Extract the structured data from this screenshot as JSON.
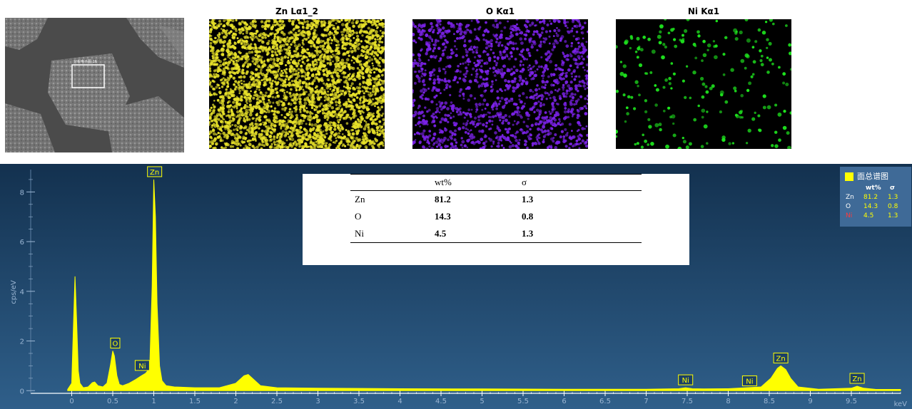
{
  "maps": [
    {
      "title": "Zn Lα1_2",
      "color": "#e8e22a"
    },
    {
      "title": "O Kα1",
      "color": "#7b22e8"
    },
    {
      "title": "Ni Kα1",
      "color": "#1ee51e"
    }
  ],
  "sem": {
    "roi_label": "分析电子图 16"
  },
  "table": {
    "headers": [
      "",
      "wt%",
      "σ"
    ],
    "rows": [
      [
        "Zn",
        "81.2",
        "1.3"
      ],
      [
        "O",
        "14.3",
        "0.8"
      ],
      [
        "Ni",
        "4.5",
        "1.3"
      ]
    ]
  },
  "legend": {
    "title": "面总谱图",
    "col1": "wt%",
    "col2": "σ",
    "rows": [
      {
        "el": "Zn",
        "wt": "81.2",
        "sigma": "1.3",
        "el_color": "#ffffff"
      },
      {
        "el": "O",
        "wt": "14.3",
        "sigma": "0.8",
        "el_color": "#ffffff"
      },
      {
        "el": "Ni",
        "wt": "4.5",
        "sigma": "1.3",
        "el_color": "#ff3b3b"
      }
    ],
    "value_color": "#ffff00"
  },
  "chart_data": {
    "type": "area",
    "xlabel": "keV",
    "ylabel": "cps/eV",
    "xlim": [
      -0.5,
      10.1
    ],
    "ylim": [
      -0.05,
      8.9
    ],
    "xticks": [
      "0",
      "0.5",
      "1",
      "1.5",
      "2",
      "2.5",
      "3",
      "3.5",
      "4",
      "4.5",
      "5",
      "5.5",
      "6",
      "6.5",
      "7",
      "7.5",
      "8",
      "8.5",
      "9",
      "9.5"
    ],
    "yticks": [
      "0",
      "2",
      "4",
      "6",
      "8"
    ],
    "series": [
      {
        "x": [
          -0.05,
          0.0,
          0.02,
          0.04,
          0.06,
          0.08,
          0.1,
          0.14,
          0.2,
          0.25,
          0.28,
          0.32,
          0.38,
          0.43,
          0.47,
          0.5,
          0.52,
          0.55,
          0.58,
          0.62,
          0.7,
          0.78,
          0.85,
          0.9,
          0.95,
          0.98,
          1.0,
          1.02,
          1.04,
          1.07,
          1.1,
          1.15,
          1.25,
          1.5,
          1.8,
          2.0,
          2.1,
          2.15,
          2.2,
          2.3,
          2.5,
          3.0,
          4.0,
          5.0,
          6.0,
          7.0,
          7.4,
          7.48,
          7.56,
          7.7,
          8.0,
          8.4,
          8.52,
          8.6,
          8.64,
          8.7,
          8.76,
          8.85,
          9.1,
          9.5,
          9.57,
          9.65,
          9.8,
          10.1
        ],
        "y": [
          0.05,
          0.3,
          2.5,
          4.6,
          2.8,
          0.8,
          0.3,
          0.12,
          0.15,
          0.32,
          0.35,
          0.2,
          0.15,
          0.3,
          1.0,
          1.6,
          1.4,
          0.6,
          0.25,
          0.2,
          0.3,
          0.45,
          0.6,
          0.7,
          0.9,
          4.2,
          8.5,
          7.0,
          3.5,
          1.0,
          0.4,
          0.2,
          0.15,
          0.12,
          0.12,
          0.3,
          0.6,
          0.65,
          0.5,
          0.2,
          0.12,
          0.1,
          0.08,
          0.07,
          0.06,
          0.06,
          0.08,
          0.12,
          0.08,
          0.07,
          0.08,
          0.15,
          0.5,
          0.9,
          1.0,
          0.85,
          0.5,
          0.15,
          0.06,
          0.1,
          0.18,
          0.1,
          0.05,
          0.05
        ],
        "color": "#ffff00"
      }
    ],
    "annotations": [
      {
        "label": "Zn",
        "x": 1.01,
        "y": 8.5
      },
      {
        "label": "O",
        "x": 0.53,
        "y": 1.6
      },
      {
        "label": "Ni",
        "x": 0.86,
        "y": 0.7
      },
      {
        "label": "Ni",
        "x": 7.48,
        "y": 0.12
      },
      {
        "label": "Ni",
        "x": 8.26,
        "y": 0.08
      },
      {
        "label": "Zn",
        "x": 8.64,
        "y": 1.0
      },
      {
        "label": "Zn",
        "x": 9.57,
        "y": 0.18
      }
    ],
    "bg_top": "#13314f",
    "bg_bottom": "#2f5f8a"
  }
}
